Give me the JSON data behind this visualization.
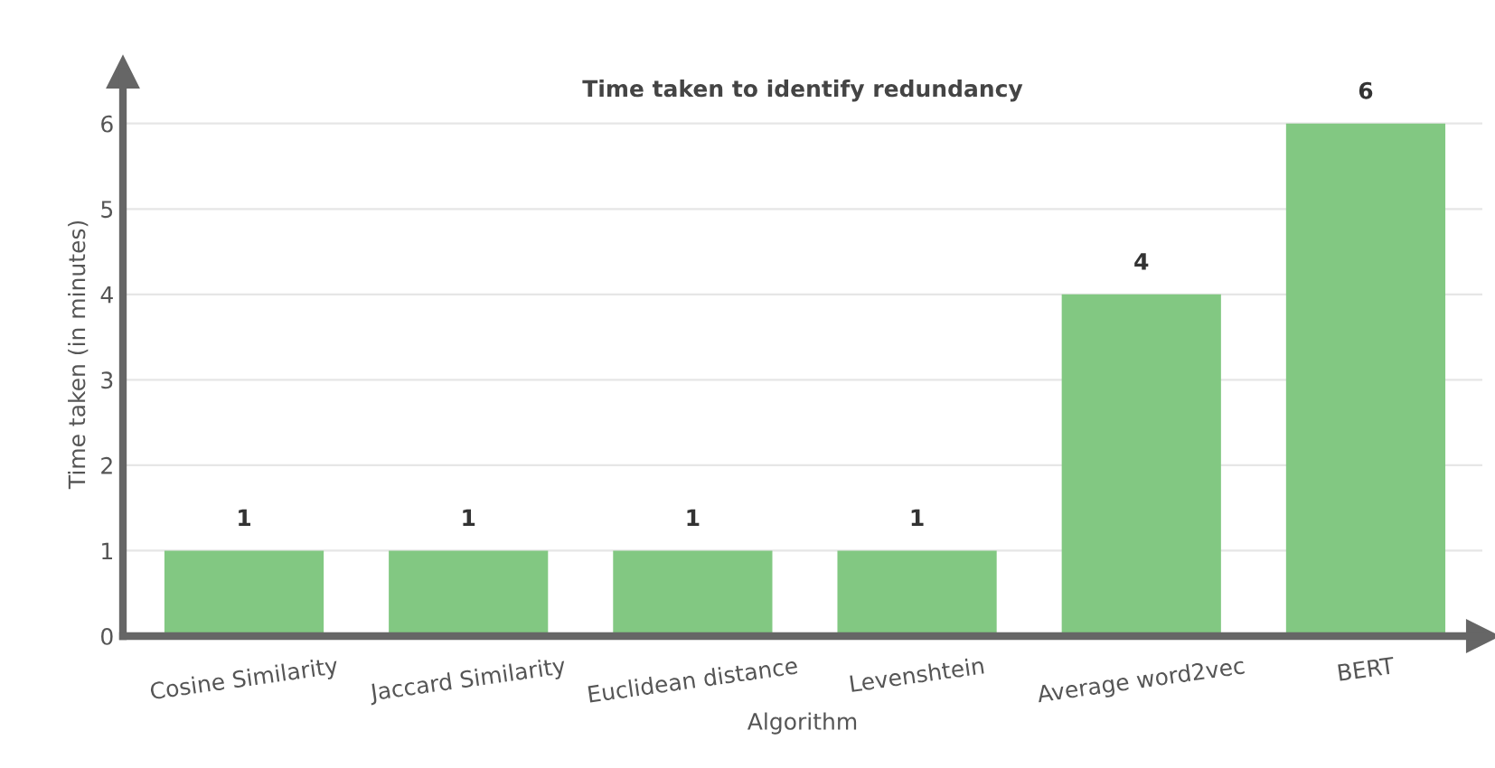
{
  "chart_data": {
    "type": "bar",
    "title": "Time taken to identify redundancy",
    "xlabel": "Algorithm",
    "ylabel": "Time taken (in minutes)",
    "categories": [
      "Cosine Similarity",
      "Jaccard Similarity",
      "Euclidean distance",
      "Levenshtein",
      "Average word2vec",
      "BERT"
    ],
    "values": [
      1,
      1,
      1,
      1,
      4,
      6
    ],
    "color": "#82c882",
    "ylim": [
      0,
      6.6
    ],
    "yticks": [
      0,
      1,
      2,
      3,
      4,
      5,
      6
    ],
    "grid": "y",
    "data_labels": true
  }
}
